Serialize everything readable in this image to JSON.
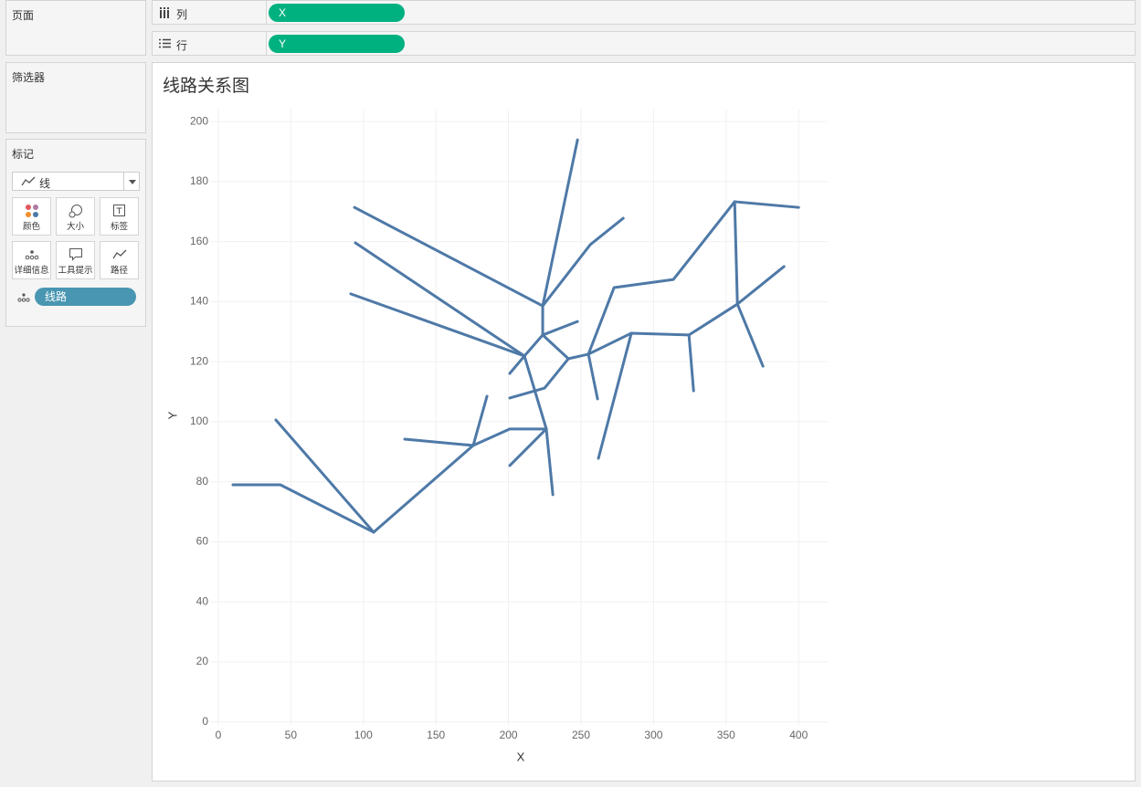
{
  "ui": {
    "pages": "页面",
    "filters": "筛选器",
    "marks": {
      "title": "标记",
      "mark_type": "线",
      "buttons": [
        "颜色",
        "大小",
        "标签",
        "详细信息",
        "工具提示",
        "路径"
      ],
      "detail_pill": "线路"
    },
    "columns": {
      "label": "列",
      "pill": "X"
    },
    "rows": {
      "label": "行",
      "pill": "Y"
    }
  },
  "chart_data": {
    "type": "line",
    "title": "线路关系图",
    "x_label": "X",
    "y_label": "Y",
    "color": "#4e79a7",
    "grid": true,
    "xlim": [
      -5,
      420
    ],
    "xticks": [
      0,
      50,
      100,
      150,
      200,
      250,
      300,
      350,
      400
    ],
    "ylim": [
      -1,
      204
    ],
    "yticks": [
      0,
      20,
      40,
      60,
      80,
      100,
      120,
      140,
      160,
      180,
      200
    ],
    "series": [
      {
        "x": [
          10.1,
          42.8,
          107.1
        ],
        "y": [
          79.0,
          79.0,
          63.2
        ]
      },
      {
        "x": [
          39.7,
          107.1
        ],
        "y": [
          100.6,
          63.2
        ]
      },
      {
        "x": [
          107.1,
          175.7,
          185.2
        ],
        "y": [
          63.2,
          92.1,
          108.5
        ]
      },
      {
        "x": [
          128.5,
          175.7
        ],
        "y": [
          94.2,
          92.1
        ]
      },
      {
        "x": [
          175.7,
          200.9,
          226.1
        ],
        "y": [
          92.1,
          97.6,
          97.6
        ]
      },
      {
        "x": [
          200.9,
          226.1
        ],
        "y": [
          85.4,
          97.6
        ]
      },
      {
        "x": [
          226.1,
          230.6
        ],
        "y": [
          97.6,
          75.7
        ]
      },
      {
        "x": [
          226.1,
          211.0,
          200.9
        ],
        "y": [
          97.6,
          121.9,
          116.1
        ]
      },
      {
        "x": [
          211.0,
          91.3
        ],
        "y": [
          121.9,
          142.6
        ]
      },
      {
        "x": [
          211.0,
          94.5
        ],
        "y": [
          121.9,
          159.6
        ]
      },
      {
        "x": [
          211.0,
          223.6,
          223.6,
          93.9
        ],
        "y": [
          121.9,
          128.9,
          138.6,
          171.4
        ]
      },
      {
        "x": [
          223.6,
          247.6
        ],
        "y": [
          138.6,
          193.9
        ]
      },
      {
        "x": [
          223.6,
          256.4,
          279.1
        ],
        "y": [
          138.6,
          159.0,
          167.8
        ]
      },
      {
        "x": [
          223.6,
          247.6
        ],
        "y": [
          128.9,
          133.4
        ]
      },
      {
        "x": [
          223.6,
          241.3,
          224.9,
          200.9
        ],
        "y": [
          128.9,
          121.0,
          111.2,
          107.9
        ]
      },
      {
        "x": [
          241.3,
          255.1,
          261.4
        ],
        "y": [
          121.0,
          122.5,
          107.6
        ]
      },
      {
        "x": [
          255.1,
          272.8,
          313.7,
          355.9,
          400
        ],
        "y": [
          122.5,
          144.7,
          147.4,
          173.3,
          171.4
        ]
      },
      {
        "x": [
          355.9,
          357.8,
          389.9
        ],
        "y": [
          173.3,
          139.2,
          151.7
        ]
      },
      {
        "x": [
          357.8,
          375.4
        ],
        "y": [
          139.2,
          118.5
        ]
      },
      {
        "x": [
          255.1,
          284.7,
          324.4,
          357.8
        ],
        "y": [
          122.5,
          129.5,
          128.9,
          139.2
        ]
      },
      {
        "x": [
          324.4,
          327.6
        ],
        "y": [
          128.9,
          110.3
        ]
      },
      {
        "x": [
          284.7,
          262.0
        ],
        "y": [
          129.5,
          87.8
        ]
      }
    ]
  }
}
